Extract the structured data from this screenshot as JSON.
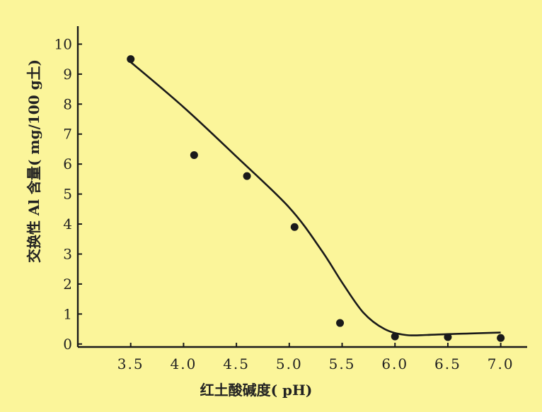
{
  "chart_data": {
    "type": "scatter",
    "xlabel": "红土酸碱度( pH)",
    "ylabel": "交换性 Al 含量( mg/100 g土)",
    "xlim": [
      3.0,
      7.25
    ],
    "ylim": [
      -0.1,
      10.6
    ],
    "xticks": [
      "3.5",
      "4.0",
      "4.5",
      "5.0",
      "5.5",
      "6.0",
      "6.5",
      "7.0"
    ],
    "yticks": [
      "0",
      "1",
      "2",
      "3",
      "4",
      "5",
      "6",
      "7",
      "8",
      "9",
      "10"
    ],
    "series": [
      {
        "kind": "points",
        "x": [
          3.5,
          4.1,
          4.6,
          5.05,
          5.48,
          6.0,
          6.5,
          7.0
        ],
        "y": [
          9.5,
          6.3,
          5.6,
          3.9,
          0.7,
          0.25,
          0.23,
          0.2
        ]
      },
      {
        "kind": "fit-line",
        "x": [
          3.5,
          4.0,
          4.5,
          5.0,
          5.3,
          5.5,
          5.7,
          5.9,
          6.1,
          6.3,
          6.5,
          6.7,
          7.0
        ],
        "y": [
          9.4,
          7.9,
          6.25,
          4.55,
          3.15,
          2.05,
          1.05,
          0.5,
          0.3,
          0.3,
          0.33,
          0.35,
          0.38
        ]
      }
    ],
    "colors": {
      "background": "#fbf59a",
      "ink": "#1a1a1a"
    }
  }
}
